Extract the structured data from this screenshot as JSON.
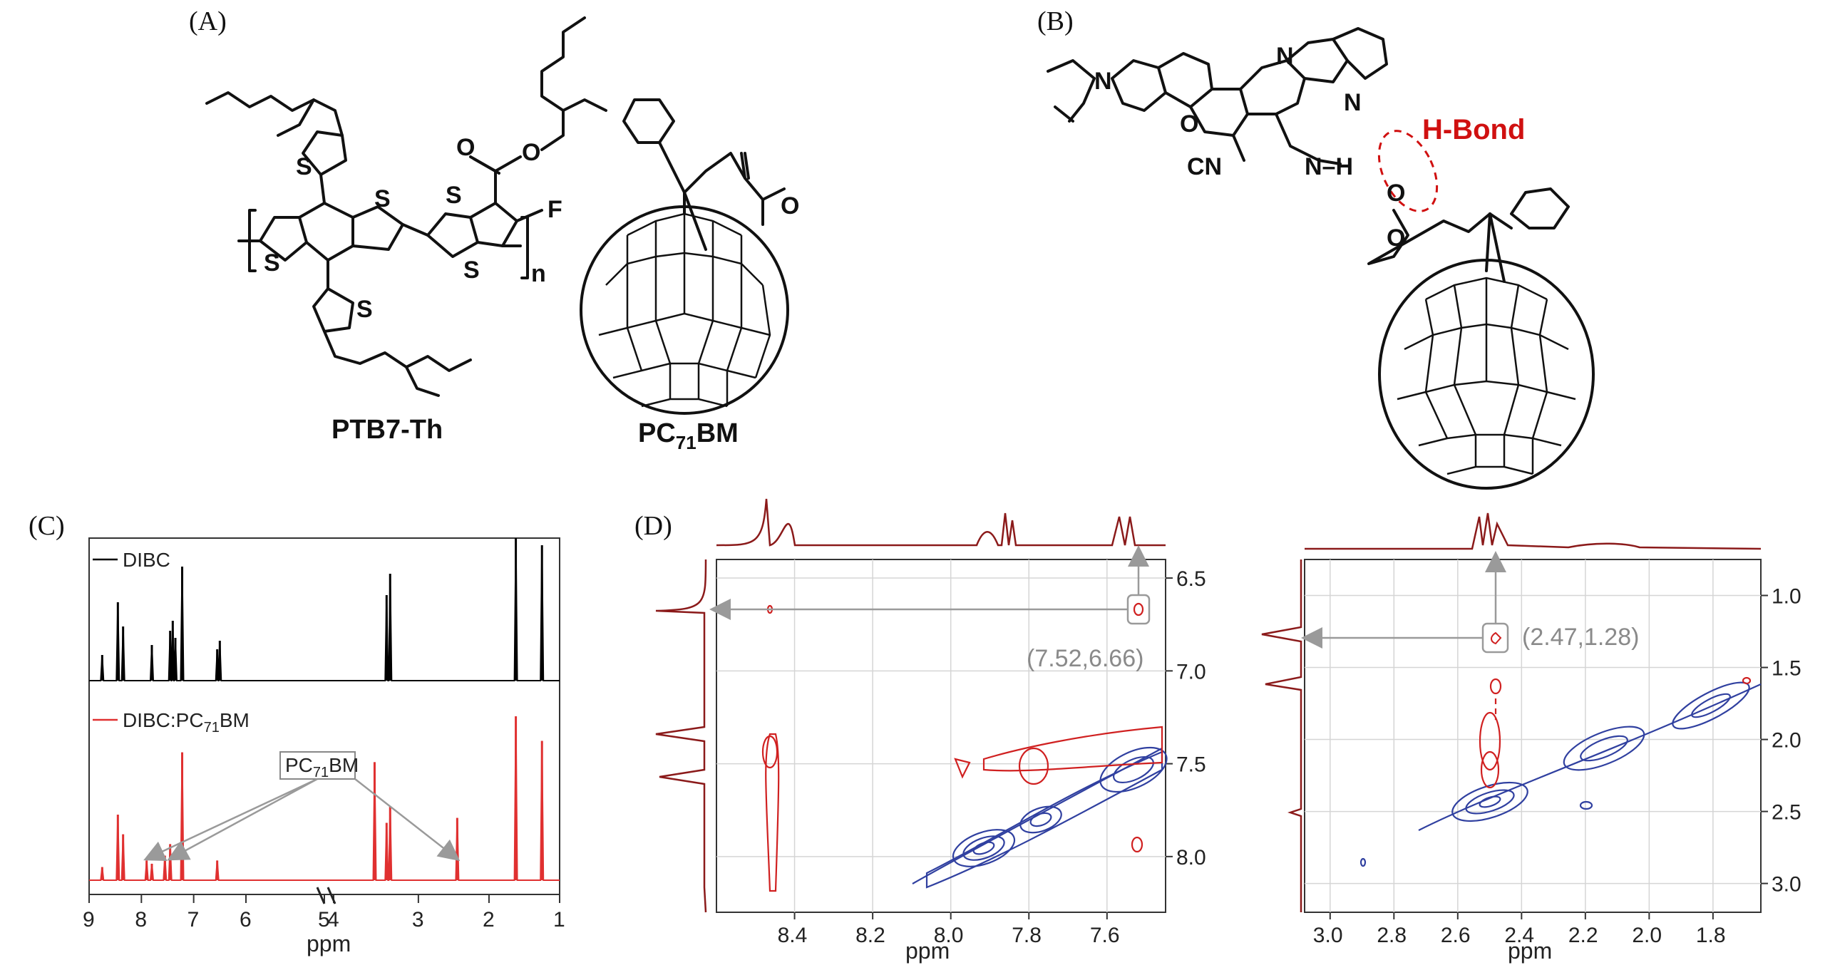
{
  "panels": {
    "a_label": "(A)",
    "b_label": "(B)",
    "c_label": "(C)",
    "d_label": "(D)"
  },
  "panel_a": {
    "polymer_name": "PTB7-Th",
    "fullerene_name_prefix": "PC",
    "fullerene_name_sub": "71",
    "fullerene_name_suffix": "BM",
    "atoms": {
      "S": "S",
      "F": "F",
      "O": "O",
      "n": "n"
    }
  },
  "panel_b": {
    "hbond_label": "H-Bond",
    "atoms": {
      "N": "N",
      "O": "O",
      "H": "H",
      "CN": "CN",
      "NH": "N–H"
    }
  },
  "chart_data": [
    {
      "type": "line",
      "panel": "C",
      "xlabel": "ppm",
      "x_ticks": [
        "9",
        "8",
        "7",
        "6",
        "5",
        "4",
        "3",
        "2",
        "1"
      ],
      "series": [
        {
          "name": "DIBC",
          "color": "#000000",
          "peaks": [
            [
              8.75,
              0.18
            ],
            [
              8.45,
              0.55
            ],
            [
              8.35,
              0.38
            ],
            [
              7.8,
              0.25
            ],
            [
              7.45,
              0.35
            ],
            [
              7.4,
              0.42
            ],
            [
              7.35,
              0.3
            ],
            [
              7.22,
              0.8
            ],
            [
              6.55,
              0.22
            ],
            [
              6.5,
              0.28
            ],
            [
              3.45,
              0.6
            ],
            [
              3.4,
              0.75
            ],
            [
              1.62,
              1.0
            ],
            [
              1.25,
              0.95
            ]
          ]
        },
        {
          "name_prefix": "DIBC:PC",
          "name_sub": "71",
          "name_suffix": "BM",
          "color": "#e03030",
          "peaks": [
            [
              8.75,
              0.08
            ],
            [
              8.45,
              0.4
            ],
            [
              8.35,
              0.28
            ],
            [
              7.9,
              0.12
            ],
            [
              7.8,
              0.1
            ],
            [
              7.55,
              0.15
            ],
            [
              7.45,
              0.22
            ],
            [
              7.22,
              0.78
            ],
            [
              6.55,
              0.12
            ],
            [
              3.62,
              0.72
            ],
            [
              3.45,
              0.35
            ],
            [
              3.4,
              0.45
            ],
            [
              2.45,
              0.38
            ],
            [
              1.62,
              1.0
            ],
            [
              1.25,
              0.85
            ]
          ]
        }
      ],
      "annotation": {
        "text_prefix": "PC",
        "text_sub": "71",
        "text_suffix": "BM",
        "targets_ppm": [
          7.9,
          7.45,
          2.45
        ]
      }
    },
    {
      "type": "heatmap",
      "panel": "D-left",
      "xlabel": "ppm",
      "x_ticks": [
        "8.4",
        "8.2",
        "8.0",
        "7.8",
        "7.6"
      ],
      "y_ticks": [
        "6.5",
        "7.0",
        "7.5",
        "8.0"
      ],
      "xlim": [
        8.6,
        7.45
      ],
      "ylim": [
        6.4,
        8.3
      ],
      "cross_peak": {
        "label": "(7.52,6.66)",
        "x": 7.52,
        "y": 6.66
      }
    },
    {
      "type": "heatmap",
      "panel": "D-right",
      "xlabel": "ppm",
      "x_ticks": [
        "3.0",
        "2.8",
        "2.6",
        "2.4",
        "2.2",
        "2.0",
        "1.8"
      ],
      "y_ticks": [
        "1.0",
        "1.5",
        "2.0",
        "2.5",
        "3.0"
      ],
      "xlim": [
        3.08,
        1.65
      ],
      "ylim": [
        0.75,
        3.2
      ],
      "cross_peak": {
        "label": "(2.47,1.28)",
        "x": 2.47,
        "y": 1.28
      }
    }
  ],
  "colors": {
    "positive": "#3040a0",
    "negative": "#d02020",
    "projection": "#8b1a1a",
    "arrow": "#9a9a9a"
  }
}
